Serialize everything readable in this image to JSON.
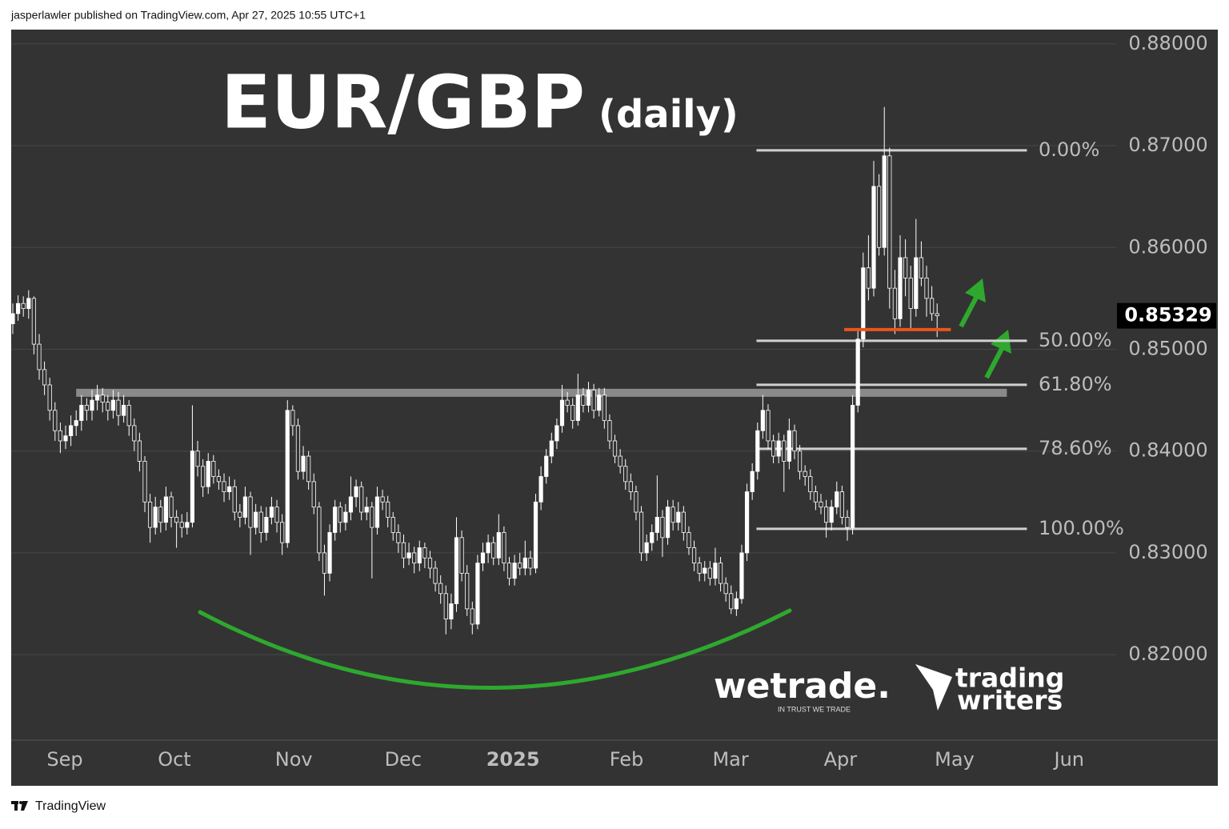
{
  "header": {
    "text": "jasperlawler published on TradingView.com, Apr 27, 2025 10:55 UTC+1"
  },
  "footer": {
    "brand": "TradingView"
  },
  "logos": {
    "wetrade": "wetrade.",
    "wetrade_tagline": "IN TRUST WE TRADE",
    "trading_writers": [
      "trading",
      "writers"
    ]
  },
  "chart_data": {
    "type": "candlestick",
    "title": "EUR/GBP",
    "subtitle": "(daily)",
    "xlim": [
      -0.3,
      208.9
    ],
    "xticks": [
      {
        "value": 9.85,
        "label": "Sep"
      },
      {
        "value": 30.6,
        "label": "Oct"
      },
      {
        "value": 53.2,
        "label": "Nov"
      },
      {
        "value": 73.9,
        "label": "Dec"
      },
      {
        "value": 94.7,
        "label": "2025"
      },
      {
        "value": 116.2,
        "label": "Feb"
      },
      {
        "value": 135.9,
        "label": "Mar"
      },
      {
        "value": 156.7,
        "label": "Apr"
      },
      {
        "value": 178.3,
        "label": "May"
      },
      {
        "value": 200,
        "label": "Jun"
      }
    ],
    "ylim": [
      0.8116,
      0.8814
    ],
    "yticks": [
      {
        "value": 0.82,
        "label": "0.82000"
      },
      {
        "value": 0.83,
        "label": "0.83000"
      },
      {
        "value": 0.84,
        "label": "0.84000"
      },
      {
        "value": 0.85,
        "label": "0.85000"
      },
      {
        "value": 0.86,
        "label": "0.86000"
      },
      {
        "value": 0.87,
        "label": "0.87000"
      },
      {
        "value": 0.88,
        "label": "0.88000"
      }
    ],
    "grid": true,
    "up_color": "#ffffff",
    "down_color": "#333333",
    "last_price": {
      "value": 0.85329,
      "label": "0.85329"
    },
    "fibonacci": {
      "x_range": [
        140.8,
        192
      ],
      "color": "#d0d0d0",
      "levels": [
        {
          "price": 0.86954,
          "label": "0.00%"
        },
        {
          "price": 0.85083,
          "label": "50.00%"
        },
        {
          "price": 0.84651,
          "label": "61.80%"
        },
        {
          "price": 0.84022,
          "label": "78.60%"
        },
        {
          "price": 0.83236,
          "label": "100.00%"
        }
      ]
    },
    "support_line": {
      "price": 0.84572,
      "x_range": [
        12,
        188.2
      ],
      "color": "#8a8a8a"
    },
    "stop_line": {
      "price": 0.85193,
      "x_range": [
        157.4,
        177.6
      ],
      "color": "#e8561e"
    },
    "ohlc": [
      [
        0.8525,
        0.8545,
        0.8515,
        0.8535
      ],
      [
        0.8535,
        0.8553,
        0.8528,
        0.8545
      ],
      [
        0.8545,
        0.8552,
        0.8532,
        0.854
      ],
      [
        0.854,
        0.8558,
        0.853,
        0.855
      ],
      [
        0.855,
        0.8552,
        0.8495,
        0.8505
      ],
      [
        0.8505,
        0.8515,
        0.847,
        0.848
      ],
      [
        0.848,
        0.8488,
        0.8455,
        0.8465
      ],
      [
        0.8465,
        0.8472,
        0.843,
        0.844
      ],
      [
        0.844,
        0.8448,
        0.841,
        0.842
      ],
      [
        0.842,
        0.8428,
        0.8398,
        0.841
      ],
      [
        0.841,
        0.8425,
        0.8402,
        0.8415
      ],
      [
        0.8415,
        0.8435,
        0.8405,
        0.8425
      ],
      [
        0.8425,
        0.844,
        0.8415,
        0.843
      ],
      [
        0.843,
        0.8455,
        0.842,
        0.8445
      ],
      [
        0.8445,
        0.8452,
        0.843,
        0.844
      ],
      [
        0.844,
        0.846,
        0.843,
        0.845
      ],
      [
        0.845,
        0.8465,
        0.844,
        0.8455
      ],
      [
        0.8455,
        0.8462,
        0.8438,
        0.8448
      ],
      [
        0.8448,
        0.8455,
        0.843,
        0.844
      ],
      [
        0.844,
        0.846,
        0.8432,
        0.845
      ],
      [
        0.845,
        0.8458,
        0.8425,
        0.8435
      ],
      [
        0.8435,
        0.8455,
        0.8428,
        0.8445
      ],
      [
        0.8445,
        0.845,
        0.8415,
        0.8425
      ],
      [
        0.8425,
        0.8432,
        0.84,
        0.841
      ],
      [
        0.841,
        0.8418,
        0.838,
        0.839
      ],
      [
        0.839,
        0.8395,
        0.834,
        0.835
      ],
      [
        0.835,
        0.8358,
        0.831,
        0.8325
      ],
      [
        0.8325,
        0.8355,
        0.8318,
        0.8345
      ],
      [
        0.8345,
        0.8352,
        0.832,
        0.833
      ],
      [
        0.833,
        0.8365,
        0.8322,
        0.8355
      ],
      [
        0.8355,
        0.836,
        0.8325,
        0.8335
      ],
      [
        0.8335,
        0.8342,
        0.8305,
        0.833
      ],
      [
        0.833,
        0.8338,
        0.8315,
        0.8325
      ],
      [
        0.8325,
        0.834,
        0.8318,
        0.833
      ],
      [
        0.833,
        0.8445,
        0.8325,
        0.84
      ],
      [
        0.84,
        0.841,
        0.8375,
        0.8385
      ],
      [
        0.8385,
        0.8392,
        0.8355,
        0.8365
      ],
      [
        0.8365,
        0.8398,
        0.8358,
        0.839
      ],
      [
        0.839,
        0.8396,
        0.8368,
        0.8375
      ],
      [
        0.8375,
        0.8382,
        0.8362,
        0.837
      ],
      [
        0.837,
        0.8378,
        0.835,
        0.836
      ],
      [
        0.836,
        0.8375,
        0.8352,
        0.8365
      ],
      [
        0.8365,
        0.8372,
        0.8332,
        0.834
      ],
      [
        0.834,
        0.8348,
        0.8325,
        0.8335
      ],
      [
        0.8335,
        0.8365,
        0.8328,
        0.8355
      ],
      [
        0.8355,
        0.836,
        0.8298,
        0.8325
      ],
      [
        0.8325,
        0.8348,
        0.8318,
        0.834
      ],
      [
        0.834,
        0.8346,
        0.831,
        0.832
      ],
      [
        0.832,
        0.8345,
        0.8312,
        0.8335
      ],
      [
        0.8335,
        0.8355,
        0.8328,
        0.8345
      ],
      [
        0.8345,
        0.8352,
        0.832,
        0.833
      ],
      [
        0.833,
        0.8338,
        0.8298,
        0.831
      ],
      [
        0.831,
        0.845,
        0.8305,
        0.844
      ],
      [
        0.844,
        0.8445,
        0.8415,
        0.8425
      ],
      [
        0.8425,
        0.8432,
        0.8372,
        0.838
      ],
      [
        0.838,
        0.8405,
        0.8372,
        0.8395
      ],
      [
        0.8395,
        0.84,
        0.8362,
        0.837
      ],
      [
        0.837,
        0.8378,
        0.8338,
        0.8345
      ],
      [
        0.8345,
        0.835,
        0.8292,
        0.83
      ],
      [
        0.83,
        0.8308,
        0.8258,
        0.828
      ],
      [
        0.828,
        0.8328,
        0.8272,
        0.832
      ],
      [
        0.832,
        0.8352,
        0.8312,
        0.8345
      ],
      [
        0.8345,
        0.835,
        0.832,
        0.833
      ],
      [
        0.833,
        0.8348,
        0.8322,
        0.834
      ],
      [
        0.834,
        0.8375,
        0.8332,
        0.8355
      ],
      [
        0.8355,
        0.8372,
        0.8345,
        0.8365
      ],
      [
        0.8365,
        0.837,
        0.8332,
        0.834
      ],
      [
        0.834,
        0.8355,
        0.8332,
        0.8345
      ],
      [
        0.8345,
        0.835,
        0.8275,
        0.8325
      ],
      [
        0.8325,
        0.8365,
        0.8318,
        0.8355
      ],
      [
        0.8355,
        0.8362,
        0.8342,
        0.835
      ],
      [
        0.835,
        0.8356,
        0.8325,
        0.8335
      ],
      [
        0.8335,
        0.834,
        0.8312,
        0.832
      ],
      [
        0.832,
        0.8328,
        0.83,
        0.831
      ],
      [
        0.831,
        0.8318,
        0.8285,
        0.8295
      ],
      [
        0.8295,
        0.831,
        0.8288,
        0.83
      ],
      [
        0.83,
        0.8306,
        0.828,
        0.829
      ],
      [
        0.829,
        0.8312,
        0.8282,
        0.8305
      ],
      [
        0.8305,
        0.831,
        0.8285,
        0.8295
      ],
      [
        0.8295,
        0.8302,
        0.8275,
        0.8285
      ],
      [
        0.8285,
        0.8292,
        0.8262,
        0.827
      ],
      [
        0.827,
        0.8278,
        0.825,
        0.826
      ],
      [
        0.826,
        0.8268,
        0.822,
        0.8235
      ],
      [
        0.8235,
        0.826,
        0.8225,
        0.825
      ],
      [
        0.825,
        0.8335,
        0.8242,
        0.8315
      ],
      [
        0.8315,
        0.8322,
        0.8272,
        0.828
      ],
      [
        0.828,
        0.8288,
        0.8238,
        0.8245
      ],
      [
        0.8245,
        0.8252,
        0.822,
        0.823
      ],
      [
        0.823,
        0.8298,
        0.8225,
        0.829
      ],
      [
        0.829,
        0.831,
        0.8282,
        0.83
      ],
      [
        0.83,
        0.8318,
        0.829,
        0.831
      ],
      [
        0.831,
        0.8316,
        0.8288,
        0.8295
      ],
      [
        0.8295,
        0.8338,
        0.8288,
        0.832
      ],
      [
        0.832,
        0.8326,
        0.8282,
        0.829
      ],
      [
        0.829,
        0.8296,
        0.8268,
        0.8275
      ],
      [
        0.8275,
        0.8298,
        0.8268,
        0.829
      ],
      [
        0.829,
        0.83,
        0.8278,
        0.8285
      ],
      [
        0.8285,
        0.8312,
        0.8278,
        0.8295
      ],
      [
        0.8295,
        0.8302,
        0.8278,
        0.8285
      ],
      [
        0.8285,
        0.8358,
        0.828,
        0.835
      ],
      [
        0.835,
        0.8385,
        0.8342,
        0.8375
      ],
      [
        0.8375,
        0.8402,
        0.8368,
        0.8395
      ],
      [
        0.8395,
        0.8418,
        0.8388,
        0.841
      ],
      [
        0.841,
        0.8432,
        0.8402,
        0.8425
      ],
      [
        0.8425,
        0.8465,
        0.8418,
        0.845
      ],
      [
        0.845,
        0.8458,
        0.8438,
        0.8445
      ],
      [
        0.8445,
        0.8452,
        0.8422,
        0.843
      ],
      [
        0.843,
        0.8476,
        0.8425,
        0.8455
      ],
      [
        0.8455,
        0.8462,
        0.8438,
        0.8445
      ],
      [
        0.8445,
        0.8468,
        0.8438,
        0.846
      ],
      [
        0.846,
        0.8466,
        0.8432,
        0.844
      ],
      [
        0.844,
        0.8462,
        0.8434,
        0.8455
      ],
      [
        0.8455,
        0.8462,
        0.8422,
        0.843
      ],
      [
        0.843,
        0.8436,
        0.8402,
        0.841
      ],
      [
        0.841,
        0.8416,
        0.8388,
        0.8395
      ],
      [
        0.8395,
        0.8402,
        0.8378,
        0.8385
      ],
      [
        0.8385,
        0.8392,
        0.8362,
        0.837
      ],
      [
        0.837,
        0.8378,
        0.8352,
        0.836
      ],
      [
        0.836,
        0.8366,
        0.8332,
        0.834
      ],
      [
        0.834,
        0.8346,
        0.8292,
        0.83
      ],
      [
        0.83,
        0.8318,
        0.8292,
        0.831
      ],
      [
        0.831,
        0.8328,
        0.8302,
        0.832
      ],
      [
        0.832,
        0.8376,
        0.8312,
        0.8335
      ],
      [
        0.8335,
        0.8342,
        0.8296,
        0.8315
      ],
      [
        0.8315,
        0.8352,
        0.8308,
        0.8345
      ],
      [
        0.8345,
        0.8352,
        0.8322,
        0.833
      ],
      [
        0.833,
        0.835,
        0.8322,
        0.834
      ],
      [
        0.834,
        0.8346,
        0.8312,
        0.832
      ],
      [
        0.832,
        0.8326,
        0.8298,
        0.8305
      ],
      [
        0.8305,
        0.8312,
        0.8282,
        0.829
      ],
      [
        0.829,
        0.8296,
        0.8272,
        0.828
      ],
      [
        0.828,
        0.8292,
        0.8272,
        0.8285
      ],
      [
        0.8285,
        0.8292,
        0.8268,
        0.8275
      ],
      [
        0.8275,
        0.8305,
        0.8268,
        0.829
      ],
      [
        0.829,
        0.8296,
        0.8262,
        0.827
      ],
      [
        0.827,
        0.8276,
        0.8252,
        0.826
      ],
      [
        0.826,
        0.8268,
        0.824,
        0.8245
      ],
      [
        0.8245,
        0.8262,
        0.8238,
        0.8255
      ],
      [
        0.8255,
        0.8308,
        0.825,
        0.83
      ],
      [
        0.83,
        0.8368,
        0.8292,
        0.836
      ],
      [
        0.836,
        0.8388,
        0.8352,
        0.838
      ],
      [
        0.838,
        0.8428,
        0.8372,
        0.842
      ],
      [
        0.842,
        0.8455,
        0.8412,
        0.844
      ],
      [
        0.844,
        0.8446,
        0.8402,
        0.841
      ],
      [
        0.841,
        0.8416,
        0.8388,
        0.8395
      ],
      [
        0.8395,
        0.8418,
        0.8388,
        0.841
      ],
      [
        0.841,
        0.8416,
        0.836,
        0.839
      ],
      [
        0.839,
        0.8432,
        0.8382,
        0.842
      ],
      [
        0.842,
        0.8426,
        0.8392,
        0.84
      ],
      [
        0.84,
        0.8406,
        0.8372,
        0.838
      ],
      [
        0.838,
        0.8386,
        0.8366,
        0.8375
      ],
      [
        0.8375,
        0.8382,
        0.8352,
        0.836
      ],
      [
        0.836,
        0.8366,
        0.8342,
        0.835
      ],
      [
        0.835,
        0.8358,
        0.8338,
        0.8345
      ],
      [
        0.8345,
        0.8352,
        0.8315,
        0.833
      ],
      [
        0.833,
        0.8352,
        0.8322,
        0.8345
      ],
      [
        0.8345,
        0.837,
        0.8338,
        0.836
      ],
      [
        0.836,
        0.8366,
        0.8328,
        0.8335
      ],
      [
        0.8335,
        0.8342,
        0.8312,
        0.8325
      ],
      [
        0.8325,
        0.8455,
        0.8318,
        0.8445
      ],
      [
        0.8445,
        0.8518,
        0.8438,
        0.851
      ],
      [
        0.851,
        0.8595,
        0.8502,
        0.858
      ],
      [
        0.858,
        0.8612,
        0.8548,
        0.856
      ],
      [
        0.856,
        0.8685,
        0.8552,
        0.866
      ],
      [
        0.866,
        0.8672,
        0.8592,
        0.86
      ],
      [
        0.86,
        0.8738,
        0.8592,
        0.869
      ],
      [
        0.869,
        0.8698,
        0.854,
        0.856
      ],
      [
        0.856,
        0.8578,
        0.8515,
        0.853
      ],
      [
        0.853,
        0.8612,
        0.8522,
        0.859
      ],
      [
        0.859,
        0.8608,
        0.8552,
        0.857
      ],
      [
        0.857,
        0.8582,
        0.852,
        0.854
      ],
      [
        0.854,
        0.8628,
        0.8532,
        0.859
      ],
      [
        0.859,
        0.8606,
        0.8562,
        0.857
      ],
      [
        0.857,
        0.8582,
        0.8532,
        0.855
      ],
      [
        0.855,
        0.8562,
        0.8528,
        0.8535
      ],
      [
        0.8535,
        0.8545,
        0.8512,
        0.85329
      ]
    ]
  }
}
